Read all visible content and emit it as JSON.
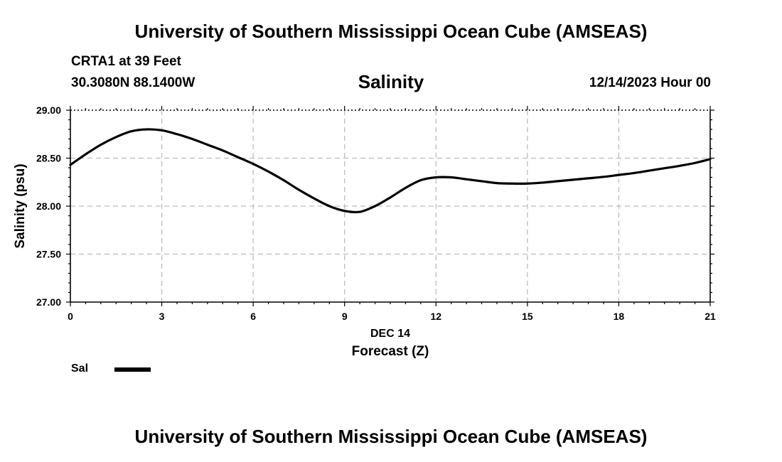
{
  "header": {
    "title": "University of Southern Mississippi Ocean Cube (AMSEAS)",
    "station": "CRTA1 at 39 Feet",
    "coords": "30.3080N  88.1400W",
    "subtitle": "Salinity",
    "datetime": "12/14/2023 Hour 00"
  },
  "footer": {
    "title": "University of Southern Mississippi Ocean Cube (AMSEAS)"
  },
  "legend": {
    "label": "Sal",
    "color": "#000000"
  },
  "chart_data": {
    "type": "line",
    "title": "Salinity",
    "xlabel": "Forecast (Z)",
    "xlabel_date": "DEC 14",
    "ylabel": "Salinity (psu)",
    "xlim": [
      0,
      21
    ],
    "ylim": [
      27.0,
      29.0
    ],
    "xticks": [
      0,
      3,
      6,
      9,
      12,
      15,
      18,
      21
    ],
    "yticks": [
      27.0,
      27.5,
      28.0,
      28.5,
      29.0
    ],
    "ytick_labels": [
      "27.00",
      "27.50",
      "28.00",
      "28.50",
      "29.00"
    ],
    "grid": true,
    "series": [
      {
        "name": "Sal",
        "color": "#000000",
        "x": [
          0,
          0.5,
          1,
          1.5,
          2,
          2.5,
          3,
          3.5,
          4,
          4.5,
          5,
          5.5,
          6,
          6.5,
          7,
          7.5,
          8,
          8.5,
          9,
          9.5,
          10,
          10.5,
          11,
          11.5,
          12,
          12.5,
          13,
          13.5,
          14,
          14.5,
          15,
          15.5,
          16,
          16.5,
          17,
          17.5,
          18,
          18.5,
          19,
          19.5,
          20,
          20.5,
          21
        ],
        "values": [
          28.43,
          28.54,
          28.64,
          28.72,
          28.78,
          28.8,
          28.79,
          28.75,
          28.7,
          28.64,
          28.58,
          28.51,
          28.44,
          28.36,
          28.27,
          28.17,
          28.08,
          28.0,
          27.95,
          27.94,
          28.0,
          28.09,
          28.19,
          28.27,
          28.3,
          28.3,
          28.28,
          28.26,
          28.24,
          28.235,
          28.235,
          28.245,
          28.26,
          28.275,
          28.29,
          28.305,
          28.325,
          28.345,
          28.37,
          28.395,
          28.42,
          28.45,
          28.49
        ]
      }
    ]
  }
}
